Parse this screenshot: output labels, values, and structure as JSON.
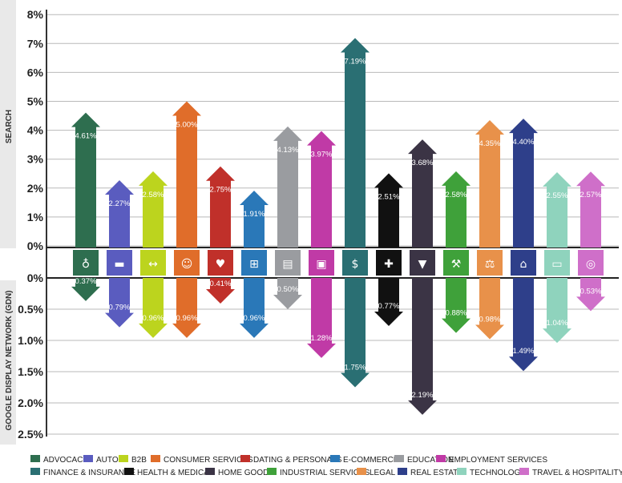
{
  "chart_data": {
    "type": "bar",
    "categories": [
      "ADVOCACY",
      "AUTO",
      "B2B",
      "CONSUMER SERVICES",
      "DATING & PERSONALS",
      "E-COMMERCE",
      "EDUCATION",
      "EMPLOYMENT SERVICES",
      "FINANCE & INSURANCE",
      "HEALTH & MEDICAL",
      "HOME GOODS",
      "INDUSTRIAL SERVICES",
      "LEGAL",
      "REAL ESTATE",
      "TECHNOLOGY",
      "TRAVEL & HOSPITALITY"
    ],
    "colors": [
      "#2e6e4f",
      "#5a5cbf",
      "#bcd41e",
      "#e06d2a",
      "#c0302a",
      "#2a78b8",
      "#9a9ca0",
      "#c03aa6",
      "#2a6f73",
      "#111111",
      "#3b3445",
      "#3fa13a",
      "#e8914a",
      "#2e3f8a",
      "#8fd3bd",
      "#cf6fc9"
    ],
    "icons": [
      "globe-hand-icon",
      "car-icon",
      "handshake-icon",
      "headset-icon",
      "heart-icon",
      "shopping-cart-icon",
      "book-icon",
      "briefcase-icon",
      "money-bag-icon",
      "first-aid-icon",
      "lamp-icon",
      "tools-icon",
      "gavel-icon",
      "house-icon",
      "laptop-icon",
      "map-pin-icon"
    ],
    "series": [
      {
        "name": "SEARCH",
        "values": [
          4.61,
          2.27,
          2.58,
          5.0,
          2.75,
          1.91,
          4.13,
          3.97,
          7.19,
          2.51,
          3.68,
          2.58,
          4.35,
          4.4,
          2.55,
          2.57
        ],
        "labels": [
          "4.61%",
          "2.27%",
          "2.58%",
          "5.00%",
          "2.75%",
          "1.91%",
          "4.13%",
          "3.97%",
          "7.19%",
          "2.51%",
          "3.68%",
          "2.58%",
          "4.35%",
          "4.40%",
          "2.55%",
          "2.57%"
        ]
      },
      {
        "name": "GOOGLE DISPLAY NETWORK (GDN)",
        "values": [
          0.37,
          0.79,
          0.96,
          0.96,
          0.41,
          0.96,
          0.5,
          1.28,
          1.75,
          0.77,
          2.19,
          0.88,
          0.98,
          1.49,
          1.04,
          0.53
        ],
        "labels": [
          "0.37%",
          "0.79%",
          "0.96%",
          "0.96%",
          "0.41%",
          "0.96%",
          "0.50%",
          "1.28%",
          "1.75%",
          "0.77%",
          "2.19%",
          "0.88%",
          "0.98%",
          "1.49%",
          "1.04%",
          "0.53%"
        ]
      }
    ],
    "ylabel_top": "SEARCH",
    "ylabel_bottom": "GOOGLE DISPLAY NETWORK (GDN)",
    "ylim_top": [
      0,
      8
    ],
    "ylim_bottom": [
      0,
      2.5
    ],
    "yticks_top": [
      "8%",
      "7%",
      "6%",
      "5%",
      "4%",
      "3%",
      "2%",
      "1%",
      "0%"
    ],
    "yticks_bottom": [
      "0%",
      "0.5%",
      "1.0%",
      "1.5%",
      "2.0%",
      "2.5%"
    ],
    "grid": true,
    "legend_position": "bottom"
  }
}
